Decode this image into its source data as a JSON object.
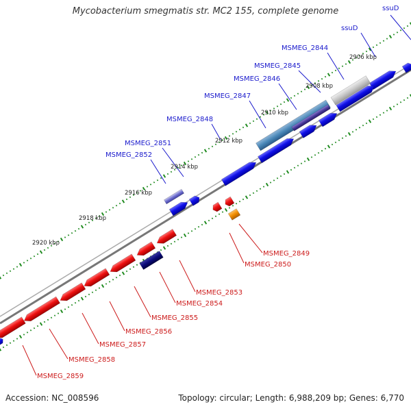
{
  "title": "Mycobacterium smegmatis str. MC2 155, complete genome",
  "footer": {
    "accession": "Accession: NC_008596",
    "summary": "Topology: circular; Length: 6,988,209 bp; Genes: 6,770"
  },
  "colors": {
    "forward_gene": "#1010e0",
    "reverse_gene": "#e01010",
    "backbone": "#888888",
    "tick": "#1e8a1e",
    "forward_label": "#1a1acc",
    "reverse_label": "#cc1a1a",
    "orange_gene": "#f08c00",
    "navy_gene": "#0a0a7a"
  },
  "ticks": [
    {
      "label": "2906 kbp"
    },
    {
      "label": "2908 kbp"
    },
    {
      "label": "2910 kbp"
    },
    {
      "label": "2912 kbp"
    },
    {
      "label": "2914 kbp"
    },
    {
      "label": "2916 kbp"
    },
    {
      "label": "2918 kbp"
    },
    {
      "label": "2920 kbp"
    }
  ],
  "forward_labels": [
    {
      "name": "ssuD"
    },
    {
      "name": "ssuD"
    },
    {
      "name": "MSMEG_2844"
    },
    {
      "name": "MSMEG_2845"
    },
    {
      "name": "MSMEG_2846"
    },
    {
      "name": "MSMEG_2847"
    },
    {
      "name": "MSMEG_2848"
    },
    {
      "name": "MSMEG_2851"
    },
    {
      "name": "MSMEG_2852"
    }
  ],
  "reverse_labels": [
    {
      "name": "MSMEG_2849"
    },
    {
      "name": "MSMEG_2850"
    },
    {
      "name": "MSMEG_2853"
    },
    {
      "name": "MSMEG_2854"
    },
    {
      "name": "MSMEG_2855"
    },
    {
      "name": "MSMEG_2856"
    },
    {
      "name": "MSMEG_2857"
    },
    {
      "name": "MSMEG_2858"
    },
    {
      "name": "MSMEG_2859"
    }
  ]
}
